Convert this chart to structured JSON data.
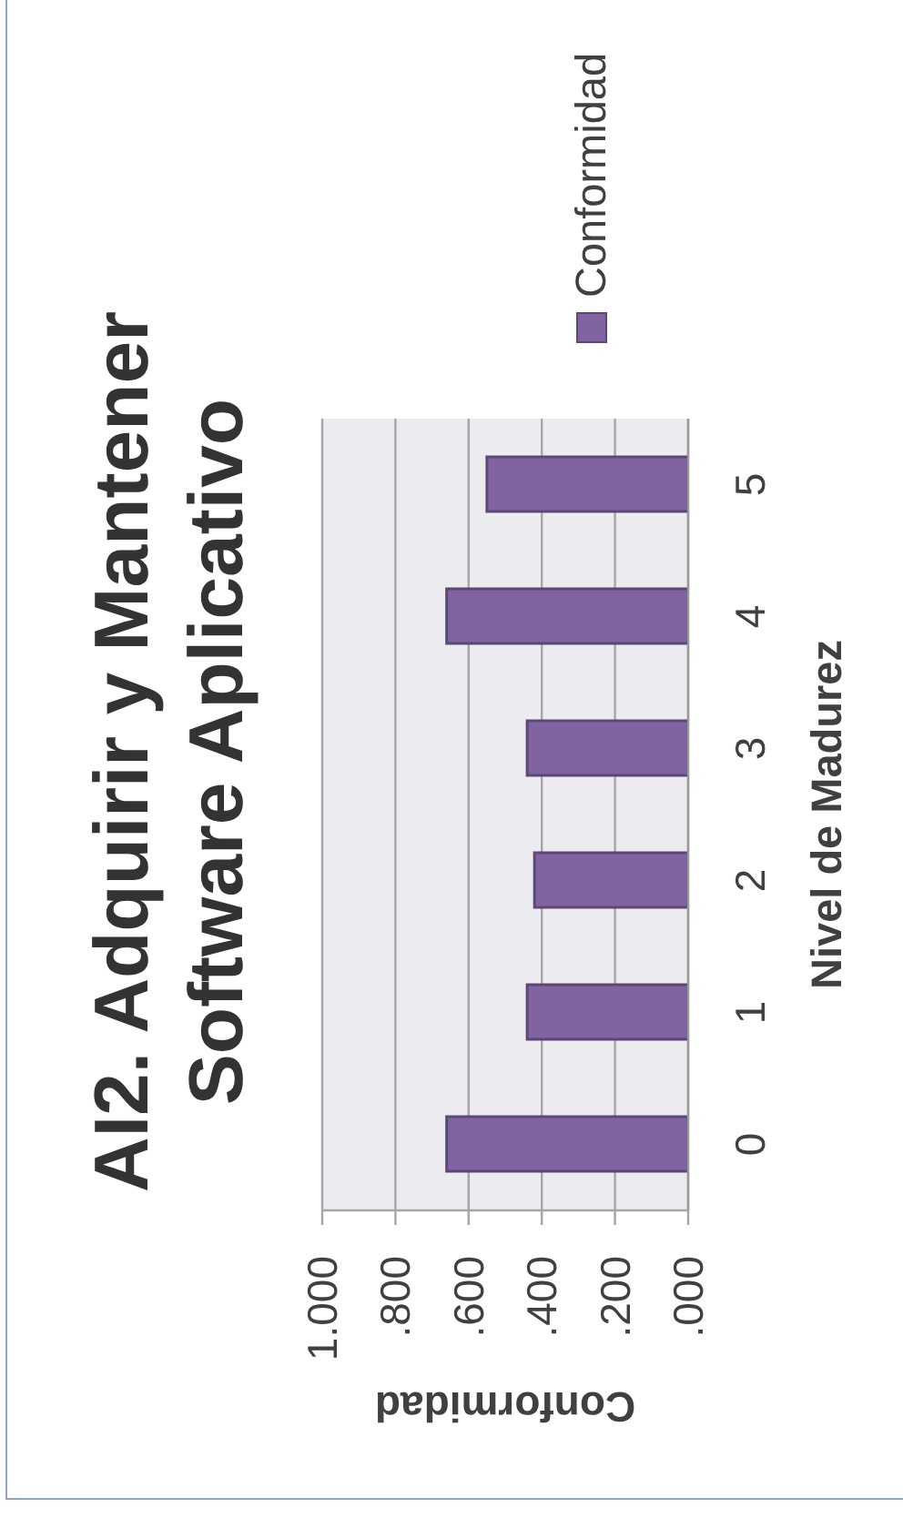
{
  "chart_data": {
    "type": "bar",
    "orientation": "horizontal",
    "title": "AI2. Adquirir y Mantener Software Aplicativo",
    "xlabel": "Conformidad",
    "ylabel": "Nivel de Madurez",
    "categories": [
      "5",
      "4",
      "3",
      "2",
      "1",
      "0"
    ],
    "series": [
      {
        "name": "Conformidad",
        "color": "#8064a2",
        "values": [
          0.55,
          0.66,
          0.44,
          0.42,
          0.44,
          0.66
        ]
      }
    ],
    "xlim": [
      1,
      0
    ],
    "xticks": [
      {
        "value": 1,
        "label": "1.000"
      },
      {
        "value": 0.8,
        "label": ".800"
      },
      {
        "value": 0.6,
        "label": ".600"
      },
      {
        "value": 0.4,
        "label": ".400"
      },
      {
        "value": 0.2,
        "label": ".200"
      },
      {
        "value": 0,
        "label": ".000"
      }
    ],
    "grid": "x",
    "legend": "top right"
  }
}
